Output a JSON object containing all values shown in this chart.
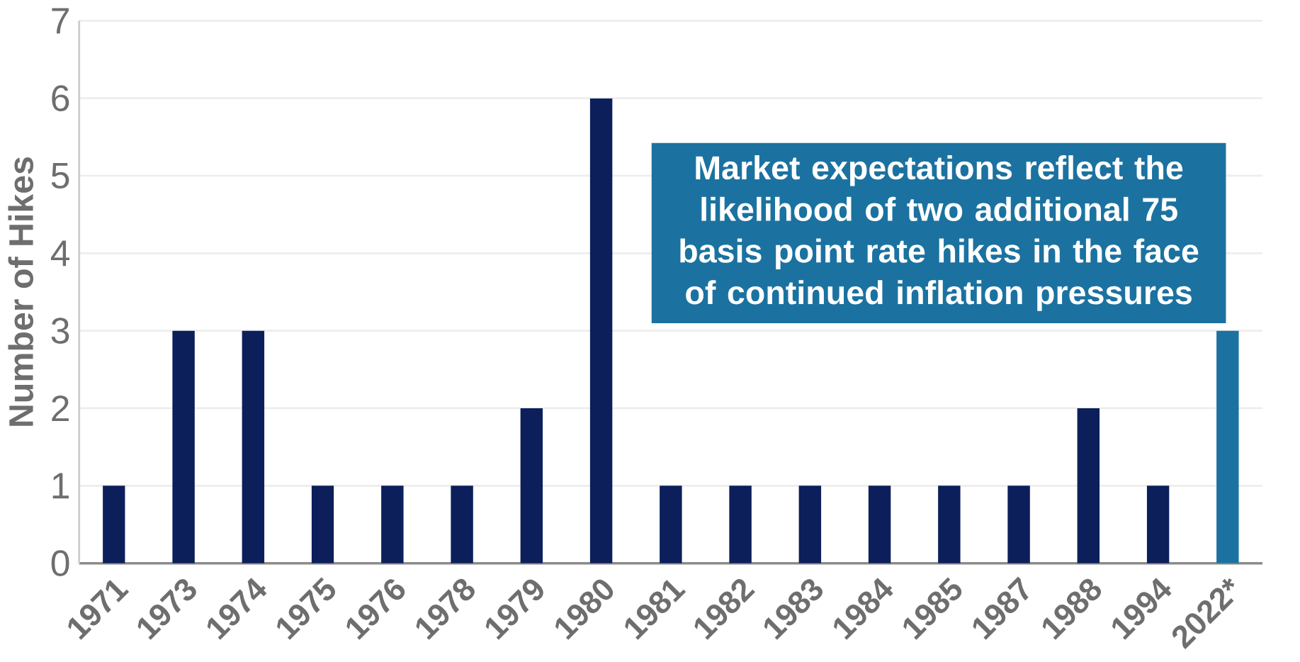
{
  "chart_data": {
    "type": "bar",
    "ylabel": "Number of Hikes",
    "categories": [
      "1971",
      "1973",
      "1974",
      "1975",
      "1976",
      "1978",
      "1979",
      "1980",
      "1981",
      "1982",
      "1983",
      "1984",
      "1985",
      "1987",
      "1988",
      "1994",
      "2022*"
    ],
    "values": [
      1,
      3,
      3,
      1,
      1,
      1,
      2,
      6,
      1,
      1,
      1,
      1,
      1,
      1,
      2,
      1,
      3
    ],
    "colors": [
      "#0c1f5b",
      "#0c1f5b",
      "#0c1f5b",
      "#0c1f5b",
      "#0c1f5b",
      "#0c1f5b",
      "#0c1f5b",
      "#0c1f5b",
      "#0c1f5b",
      "#0c1f5b",
      "#0c1f5b",
      "#0c1f5b",
      "#0c1f5b",
      "#0c1f5b",
      "#0c1f5b",
      "#0c1f5b",
      "#1b72a0"
    ],
    "ylim": [
      0,
      7
    ],
    "yticks": [
      0,
      1,
      2,
      3,
      4,
      5,
      6,
      7
    ],
    "grid": "y",
    "annotations": [
      "Market expectations reflect the likelihood of two additional 75 basis point rate hikes in the face of continued inflation pressures"
    ]
  }
}
